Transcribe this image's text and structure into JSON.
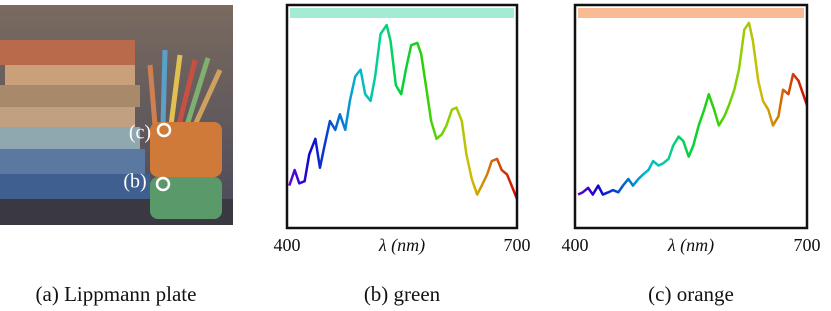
{
  "image": {
    "caption": "(a) Lippmann plate",
    "markers": [
      "(c)",
      "(b)"
    ]
  },
  "chart_data": [
    {
      "type": "line",
      "caption": "(b) green",
      "xlabel": "λ (nm)",
      "xlim": [
        400,
        700
      ],
      "xticks": [
        400,
        700
      ],
      "ylim": [
        0,
        1
      ],
      "band_color": "#a3ecd2",
      "x": [
        403,
        410,
        416,
        423,
        429,
        437,
        443,
        449,
        456,
        463,
        469,
        476,
        482,
        489,
        496,
        502,
        509,
        515,
        522,
        530,
        535,
        542,
        549,
        555,
        562,
        570,
        575,
        582,
        588,
        595,
        602,
        608,
        615,
        621,
        628,
        634,
        641,
        648,
        654,
        661,
        667,
        674,
        680,
        687,
        693,
        700
      ],
      "values": [
        0.19,
        0.26,
        0.2,
        0.21,
        0.33,
        0.4,
        0.27,
        0.37,
        0.48,
        0.44,
        0.51,
        0.44,
        0.57,
        0.68,
        0.71,
        0.6,
        0.57,
        0.68,
        0.87,
        0.91,
        0.84,
        0.64,
        0.6,
        0.71,
        0.82,
        0.83,
        0.78,
        0.62,
        0.48,
        0.4,
        0.42,
        0.46,
        0.53,
        0.54,
        0.48,
        0.33,
        0.22,
        0.15,
        0.19,
        0.24,
        0.3,
        0.31,
        0.26,
        0.24,
        0.19,
        0.13
      ]
    },
    {
      "type": "line",
      "caption": "(c) orange",
      "xlabel": "λ (nm)",
      "xlim": [
        400,
        700
      ],
      "xticks": [
        400,
        700
      ],
      "ylim": [
        0,
        1
      ],
      "band_color": "#f8bb94",
      "x": [
        404,
        410,
        417,
        423,
        430,
        436,
        443,
        449,
        456,
        462,
        469,
        475,
        482,
        488,
        495,
        501,
        508,
        514,
        521,
        527,
        534,
        540,
        547,
        553,
        560,
        567,
        573,
        580,
        586,
        593,
        599,
        606,
        612,
        619,
        625,
        630,
        637,
        643,
        650,
        656,
        663,
        669,
        676,
        682,
        689,
        695,
        700
      ],
      "values": [
        0.15,
        0.16,
        0.18,
        0.15,
        0.19,
        0.15,
        0.16,
        0.17,
        0.16,
        0.19,
        0.22,
        0.19,
        0.22,
        0.24,
        0.26,
        0.3,
        0.28,
        0.29,
        0.31,
        0.37,
        0.41,
        0.39,
        0.32,
        0.37,
        0.46,
        0.53,
        0.6,
        0.53,
        0.46,
        0.5,
        0.55,
        0.62,
        0.71,
        0.89,
        0.92,
        0.84,
        0.66,
        0.57,
        0.53,
        0.46,
        0.5,
        0.62,
        0.6,
        0.69,
        0.66,
        0.6,
        0.55
      ]
    }
  ]
}
